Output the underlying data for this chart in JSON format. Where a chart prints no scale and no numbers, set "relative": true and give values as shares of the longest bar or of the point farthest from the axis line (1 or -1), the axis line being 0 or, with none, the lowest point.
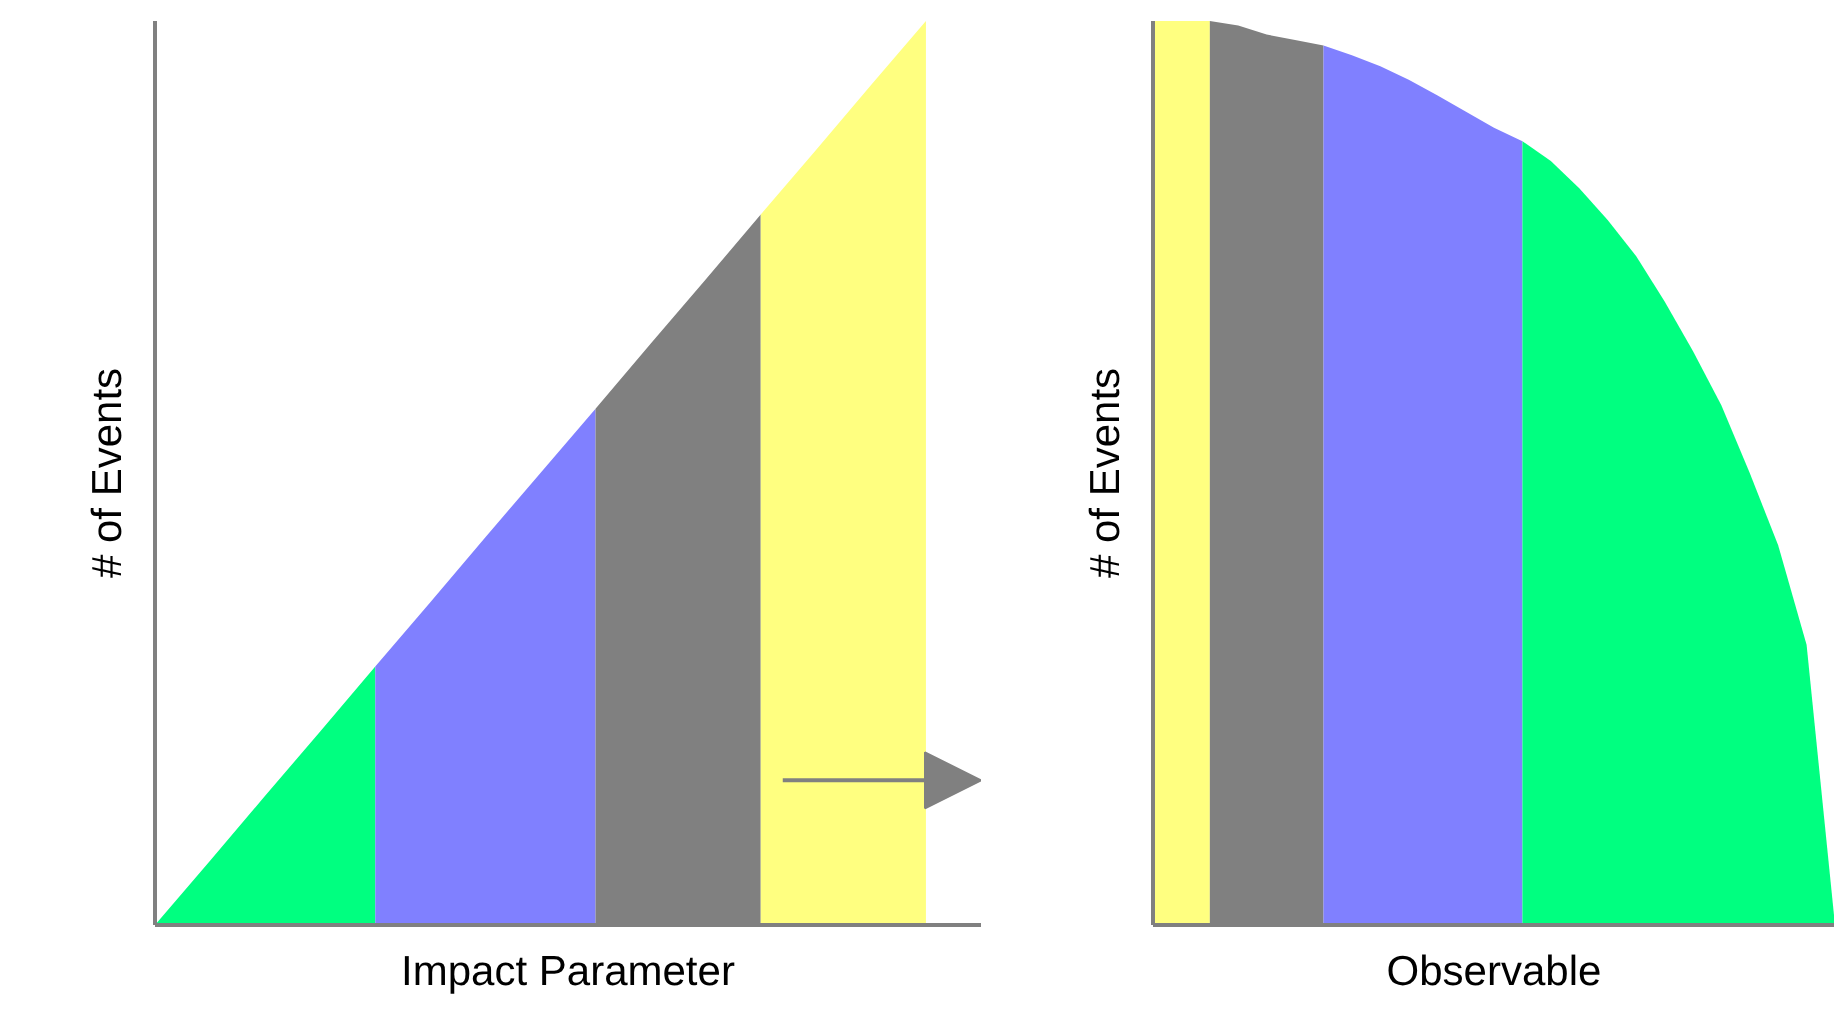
{
  "chart_data": [
    {
      "type": "area",
      "xlabel": "Impact Parameter",
      "ylabel": "# of Events",
      "relative": true,
      "tick_labels": false,
      "categories": [
        null,
        null,
        null,
        null,
        null,
        null,
        null,
        null,
        null,
        null,
        null,
        null,
        null,
        null,
        null,
        null
      ],
      "series": [
        {
          "color": "#00ff80",
          "values": [
            0,
            0.071,
            0.143,
            0.214,
            0.286,
            null,
            null,
            null,
            null,
            null,
            null,
            null,
            null,
            null,
            null,
            null
          ]
        },
        {
          "color": "#8080ff",
          "values": [
            null,
            null,
            null,
            null,
            0.286,
            0.357,
            0.429,
            0.5,
            0.571,
            null,
            null,
            null,
            null,
            null,
            null,
            null
          ]
        },
        {
          "color": "#808080",
          "values": [
            null,
            null,
            null,
            null,
            null,
            null,
            null,
            null,
            0.571,
            0.643,
            0.714,
            0.786,
            null,
            null,
            null,
            null
          ]
        },
        {
          "color": "#ffff80",
          "values": [
            null,
            null,
            null,
            null,
            null,
            null,
            null,
            null,
            null,
            null,
            null,
            0.786,
            0.857,
            0.929,
            1,
            null
          ]
        }
      ]
    },
    {
      "type": "area",
      "xlabel": "Observable",
      "ylabel": "# of Events",
      "relative": true,
      "tick_labels": false,
      "categories": [
        null,
        null,
        null,
        null,
        null,
        null,
        null,
        null,
        null,
        null,
        null,
        null,
        null,
        null,
        null,
        null,
        null,
        null,
        null,
        null,
        null,
        null,
        null,
        null,
        null
      ],
      "series": [
        {
          "color": "#ffff80",
          "values": [
            1,
            1,
            1,
            null,
            null,
            null,
            null,
            null,
            null,
            null,
            null,
            null,
            null,
            null,
            null,
            null,
            null,
            null,
            null,
            null,
            null,
            null,
            null,
            null,
            null
          ]
        },
        {
          "color": "#808080",
          "values": [
            null,
            null,
            1,
            0.995,
            0.985,
            0.979,
            0.973,
            null,
            null,
            null,
            null,
            null,
            null,
            null,
            null,
            null,
            null,
            null,
            null,
            null,
            null,
            null,
            null,
            null,
            null
          ]
        },
        {
          "color": "#8080ff",
          "values": [
            null,
            null,
            null,
            null,
            null,
            null,
            0.973,
            0.962,
            0.95,
            0.935,
            0.918,
            0.9,
            0.882,
            0.867,
            null,
            null,
            null,
            null,
            null,
            null,
            null,
            null,
            null,
            null,
            null
          ]
        },
        {
          "color": "#00ff80",
          "values": [
            null,
            null,
            null,
            null,
            null,
            null,
            null,
            null,
            null,
            null,
            null,
            null,
            null,
            0.867,
            0.845,
            0.815,
            0.78,
            0.74,
            0.69,
            0.635,
            0.575,
            0.5,
            0.42,
            0.31,
            0
          ]
        }
      ]
    }
  ]
}
